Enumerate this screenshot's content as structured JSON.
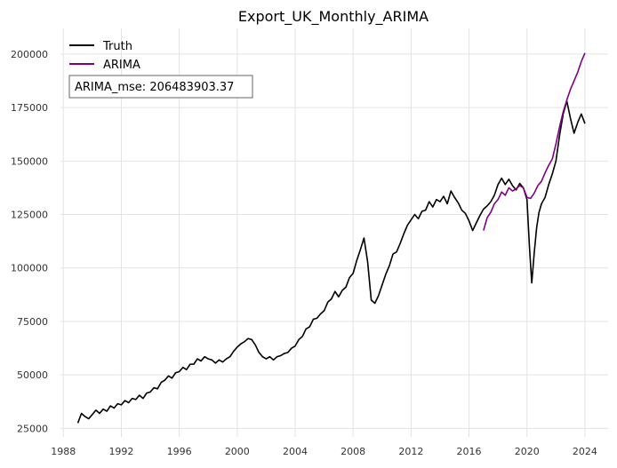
{
  "chart_data": {
    "type": "line",
    "title": "Export_UK_Monthly_ARIMA",
    "xlabel": "",
    "ylabel": "",
    "x_ticks": [
      "1988",
      "1992",
      "1996",
      "2000",
      "2004",
      "2008",
      "2012",
      "2016",
      "2020",
      "2024"
    ],
    "y_ticks": [
      "25000",
      "50000",
      "75000",
      "100000",
      "125000",
      "150000",
      "175000",
      "200000"
    ],
    "xlim": [
      1987.8,
      2025.6
    ],
    "ylim": [
      21000,
      212000
    ],
    "grid": true,
    "legend_position": "top-left",
    "annotation": "ARIMA_mse: 206483903.37",
    "series": [
      {
        "name": "Truth",
        "color": "#000000",
        "points": [
          [
            1989.0,
            27500
          ],
          [
            1989.25,
            32000
          ],
          [
            1989.5,
            30500
          ],
          [
            1989.75,
            29500
          ],
          [
            1990.0,
            31500
          ],
          [
            1990.25,
            33500
          ],
          [
            1990.5,
            32000
          ],
          [
            1990.75,
            34000
          ],
          [
            1991.0,
            33000
          ],
          [
            1991.25,
            35500
          ],
          [
            1991.5,
            34500
          ],
          [
            1991.75,
            36500
          ],
          [
            1992.0,
            36000
          ],
          [
            1992.25,
            38000
          ],
          [
            1992.5,
            37000
          ],
          [
            1992.75,
            39000
          ],
          [
            1993.0,
            38500
          ],
          [
            1993.25,
            40500
          ],
          [
            1993.5,
            39000
          ],
          [
            1993.75,
            41500
          ],
          [
            1994.0,
            42000
          ],
          [
            1994.25,
            44000
          ],
          [
            1994.5,
            43500
          ],
          [
            1994.75,
            46500
          ],
          [
            1995.0,
            47500
          ],
          [
            1995.25,
            49500
          ],
          [
            1995.5,
            48500
          ],
          [
            1995.75,
            51000
          ],
          [
            1996.0,
            51500
          ],
          [
            1996.25,
            53500
          ],
          [
            1996.5,
            52500
          ],
          [
            1996.75,
            55000
          ],
          [
            1997.0,
            55000
          ],
          [
            1997.25,
            57500
          ],
          [
            1997.5,
            56500
          ],
          [
            1997.75,
            58500
          ],
          [
            1998.0,
            57500
          ],
          [
            1998.25,
            57000
          ],
          [
            1998.5,
            55500
          ],
          [
            1998.75,
            57000
          ],
          [
            1999.0,
            56000
          ],
          [
            1999.25,
            57500
          ],
          [
            1999.5,
            58500
          ],
          [
            1999.75,
            61000
          ],
          [
            2000.0,
            63000
          ],
          [
            2000.25,
            64500
          ],
          [
            2000.5,
            65500
          ],
          [
            2000.75,
            67000
          ],
          [
            2001.0,
            66500
          ],
          [
            2001.25,
            64000
          ],
          [
            2001.5,
            60500
          ],
          [
            2001.75,
            58500
          ],
          [
            2002.0,
            57500
          ],
          [
            2002.25,
            58500
          ],
          [
            2002.5,
            57000
          ],
          [
            2002.75,
            58500
          ],
          [
            2003.0,
            59000
          ],
          [
            2003.25,
            60000
          ],
          [
            2003.5,
            60500
          ],
          [
            2003.75,
            62500
          ],
          [
            2004.0,
            63500
          ],
          [
            2004.25,
            66500
          ],
          [
            2004.5,
            68000
          ],
          [
            2004.75,
            71500
          ],
          [
            2005.0,
            72500
          ],
          [
            2005.25,
            76000
          ],
          [
            2005.5,
            76500
          ],
          [
            2005.75,
            78500
          ],
          [
            2006.0,
            80000
          ],
          [
            2006.25,
            84000
          ],
          [
            2006.5,
            85500
          ],
          [
            2006.75,
            89000
          ],
          [
            2007.0,
            86500
          ],
          [
            2007.25,
            89500
          ],
          [
            2007.5,
            91000
          ],
          [
            2007.75,
            95500
          ],
          [
            2008.0,
            97500
          ],
          [
            2008.25,
            103500
          ],
          [
            2008.5,
            108500
          ],
          [
            2008.75,
            114000
          ],
          [
            2009.0,
            103000
          ],
          [
            2009.25,
            85000
          ],
          [
            2009.5,
            83500
          ],
          [
            2009.75,
            87000
          ],
          [
            2010.0,
            92000
          ],
          [
            2010.25,
            97000
          ],
          [
            2010.5,
            101000
          ],
          [
            2010.75,
            106500
          ],
          [
            2011.0,
            107500
          ],
          [
            2011.25,
            111500
          ],
          [
            2011.5,
            116000
          ],
          [
            2011.75,
            120000
          ],
          [
            2012.0,
            122500
          ],
          [
            2012.25,
            125000
          ],
          [
            2012.5,
            123000
          ],
          [
            2012.75,
            126500
          ],
          [
            2013.0,
            127000
          ],
          [
            2013.25,
            131000
          ],
          [
            2013.5,
            128500
          ],
          [
            2013.75,
            132000
          ],
          [
            2014.0,
            131000
          ],
          [
            2014.25,
            133500
          ],
          [
            2014.5,
            130000
          ],
          [
            2014.75,
            136000
          ],
          [
            2015.0,
            133000
          ],
          [
            2015.25,
            130500
          ],
          [
            2015.5,
            127000
          ],
          [
            2015.75,
            125500
          ],
          [
            2016.0,
            122000
          ],
          [
            2016.25,
            117500
          ],
          [
            2016.5,
            121000
          ],
          [
            2016.75,
            124500
          ],
          [
            2017.0,
            127500
          ],
          [
            2017.25,
            129000
          ],
          [
            2017.5,
            131000
          ],
          [
            2017.75,
            134000
          ],
          [
            2018.0,
            139000
          ],
          [
            2018.25,
            142000
          ],
          [
            2018.5,
            139000
          ],
          [
            2018.75,
            141500
          ],
          [
            2019.0,
            138500
          ],
          [
            2019.25,
            136500
          ],
          [
            2019.5,
            139500
          ],
          [
            2019.75,
            137500
          ],
          [
            2020.0,
            132000
          ],
          [
            2020.17,
            110000
          ],
          [
            2020.33,
            93000
          ],
          [
            2020.5,
            107000
          ],
          [
            2020.67,
            119000
          ],
          [
            2020.83,
            126000
          ],
          [
            2021.0,
            130000
          ],
          [
            2021.25,
            133000
          ],
          [
            2021.5,
            139000
          ],
          [
            2021.75,
            144000
          ],
          [
            2022.0,
            150000
          ],
          [
            2022.25,
            162000
          ],
          [
            2022.5,
            172000
          ],
          [
            2022.75,
            178000
          ],
          [
            2023.0,
            170000
          ],
          [
            2023.25,
            163000
          ],
          [
            2023.5,
            168000
          ],
          [
            2023.75,
            172000
          ],
          [
            2024.0,
            167500
          ]
        ]
      },
      {
        "name": "ARIMA",
        "color": "#800080",
        "points": [
          [
            2017.0,
            117500
          ],
          [
            2017.25,
            123500
          ],
          [
            2017.5,
            126000
          ],
          [
            2017.75,
            130000
          ],
          [
            2018.0,
            132000
          ],
          [
            2018.25,
            135500
          ],
          [
            2018.5,
            134000
          ],
          [
            2018.75,
            137500
          ],
          [
            2019.0,
            136000
          ],
          [
            2019.25,
            137000
          ],
          [
            2019.5,
            138500
          ],
          [
            2019.75,
            137500
          ],
          [
            2020.0,
            133000
          ],
          [
            2020.25,
            132500
          ],
          [
            2020.5,
            135000
          ],
          [
            2020.75,
            138500
          ],
          [
            2021.0,
            140500
          ],
          [
            2021.25,
            144500
          ],
          [
            2021.5,
            148000
          ],
          [
            2021.75,
            151000
          ],
          [
            2022.0,
            158000
          ],
          [
            2022.25,
            166000
          ],
          [
            2022.5,
            173000
          ],
          [
            2022.75,
            178500
          ],
          [
            2023.0,
            183500
          ],
          [
            2023.25,
            187500
          ],
          [
            2023.5,
            191500
          ],
          [
            2023.75,
            196500
          ],
          [
            2024.0,
            200500
          ]
        ]
      }
    ]
  }
}
